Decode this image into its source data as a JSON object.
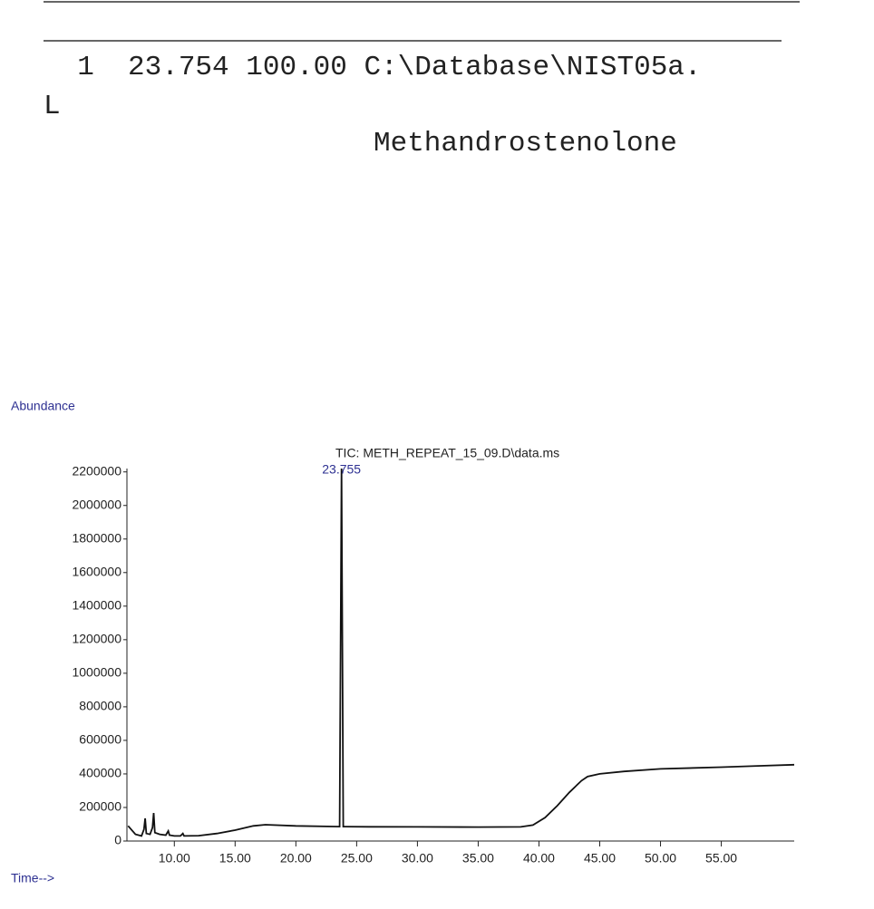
{
  "header": {
    "hit_line": "  1  23.754 100.00 C:\\Database\\NIST05a.",
    "hit_line_wrap": "L",
    "compound": "Methandrostenolone"
  },
  "chart_data": {
    "type": "line",
    "title": "TIC: METH_REPEAT_15_09.D\\data.ms",
    "y_label": "Abundance",
    "x_label": "Time-->",
    "annotation": {
      "text": "23.755",
      "x": 23.755
    },
    "x": [
      6.2,
      6.8,
      7.3,
      7.5,
      7.6,
      7.7,
      8.0,
      8.2,
      8.3,
      8.4,
      8.8,
      9.3,
      9.5,
      9.6,
      10.0,
      10.5,
      10.7,
      10.8,
      12.0,
      13.5,
      15.0,
      16.5,
      17.5,
      20.0,
      23.6,
      23.755,
      23.9,
      26.0,
      30.0,
      35.0,
      38.5,
      39.5,
      40.5,
      41.5,
      42.5,
      43.5,
      44.0,
      45.0,
      47.0,
      50.0,
      55.0,
      58.0,
      61.0
    ],
    "series": [
      {
        "name": "TIC",
        "color": "#111111",
        "values": [
          90000,
          40000,
          30000,
          70000,
          135000,
          45000,
          40000,
          80000,
          167000,
          50000,
          40000,
          35000,
          60000,
          35000,
          30000,
          30000,
          45000,
          30000,
          32000,
          45000,
          65000,
          90000,
          97000,
          90000,
          86000,
          2220000,
          86000,
          85000,
          84000,
          83000,
          84000,
          95000,
          140000,
          210000,
          290000,
          360000,
          384000,
          400000,
          415000,
          430000,
          440000,
          448000,
          455000
        ]
      }
    ],
    "xlim": [
      6.1,
      61.0
    ],
    "ylim": [
      0,
      2220000
    ],
    "xticks": [
      {
        "value": 10,
        "label": "10.00"
      },
      {
        "value": 15,
        "label": "15.00"
      },
      {
        "value": 20,
        "label": "20.00"
      },
      {
        "value": 25,
        "label": "25.00"
      },
      {
        "value": 30,
        "label": "30.00"
      },
      {
        "value": 35,
        "label": "35.00"
      },
      {
        "value": 40,
        "label": "40.00"
      },
      {
        "value": 45,
        "label": "45.00"
      },
      {
        "value": 50,
        "label": "50.00"
      },
      {
        "value": 55,
        "label": "55.00"
      }
    ],
    "yticks": [
      0,
      200000,
      400000,
      600000,
      800000,
      1000000,
      1200000,
      1400000,
      1600000,
      1800000,
      2000000,
      2200000
    ]
  }
}
